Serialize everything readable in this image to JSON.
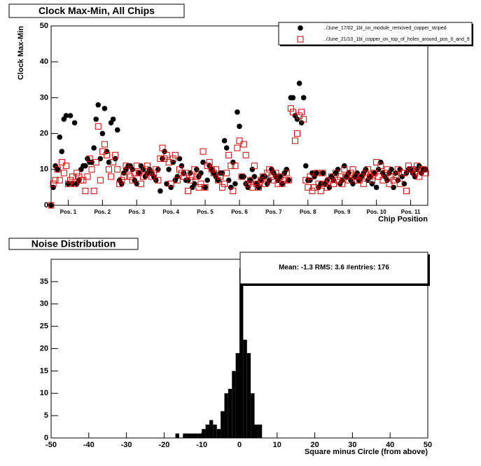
{
  "chart_data": [
    {
      "type": "scatter",
      "title": "Clock Max-Min, All Chips",
      "x_label": "Chip Position",
      "y_label": "Clock Max-Min",
      "xlim": [
        0,
        176
      ],
      "ylim": [
        0,
        50
      ],
      "yticks": [
        0,
        10,
        20,
        30,
        40,
        50
      ],
      "xticks": [
        {
          "value": 8,
          "label": "Pos. 1"
        },
        {
          "value": 24,
          "label": "Pos. 2"
        },
        {
          "value": 40,
          "label": "Pos. 3"
        },
        {
          "value": 56,
          "label": "Pos. 4"
        },
        {
          "value": 72,
          "label": "Pos. 5"
        },
        {
          "value": 88,
          "label": "Pos. 6"
        },
        {
          "value": 104,
          "label": "Pos. 7"
        },
        {
          "value": 120,
          "label": "Pos. 8"
        },
        {
          "value": 136,
          "label": "Pos. 9"
        },
        {
          "value": 152,
          "label": "Pos. 10"
        },
        {
          "value": 168,
          "label": "Pos. 11"
        }
      ],
      "legend": "upper right",
      "grid": false,
      "x": [
        0,
        1,
        2,
        3,
        4,
        5,
        6,
        7,
        8,
        9,
        10,
        11,
        12,
        13,
        14,
        15,
        16,
        17,
        18,
        19,
        20,
        21,
        22,
        23,
        24,
        25,
        26,
        27,
        28,
        29,
        30,
        31,
        32,
        33,
        34,
        35,
        36,
        37,
        38,
        39,
        40,
        41,
        42,
        43,
        44,
        45,
        46,
        47,
        48,
        49,
        50,
        51,
        52,
        53,
        54,
        55,
        56,
        57,
        58,
        59,
        60,
        61,
        62,
        63,
        64,
        65,
        66,
        67,
        68,
        69,
        70,
        71,
        72,
        73,
        74,
        75,
        76,
        77,
        78,
        79,
        80,
        81,
        82,
        83,
        84,
        85,
        86,
        87,
        88,
        89,
        90,
        91,
        92,
        93,
        94,
        95,
        96,
        97,
        98,
        99,
        100,
        101,
        102,
        103,
        104,
        105,
        106,
        107,
        108,
        109,
        110,
        111,
        112,
        113,
        114,
        115,
        116,
        117,
        118,
        119,
        120,
        121,
        122,
        123,
        124,
        125,
        126,
        127,
        128,
        129,
        130,
        131,
        132,
        133,
        134,
        135,
        136,
        137,
        138,
        139,
        140,
        141,
        142,
        143,
        144,
        145,
        146,
        147,
        148,
        149,
        150,
        151,
        152,
        153,
        154,
        155,
        156,
        157,
        158,
        159,
        160,
        161,
        162,
        163,
        164,
        165,
        166,
        167,
        168,
        169,
        170,
        171,
        172,
        173,
        174,
        175
      ],
      "series": [
        {
          "name": "../June_17/02_1bl_on_module_removed_copper_striped",
          "color": "#000000",
          "marker": "circle",
          "values": [
            0,
            5,
            11,
            10,
            19,
            15,
            24,
            25,
            6,
            25,
            6,
            23,
            6,
            7,
            10,
            11,
            11,
            13,
            12,
            12,
            16,
            24,
            28,
            13,
            20,
            27,
            15,
            12,
            23,
            24,
            13,
            21,
            7,
            6,
            9,
            10,
            11,
            11,
            10,
            7,
            6,
            9,
            11,
            10,
            8,
            9,
            10,
            9,
            8,
            7,
            10,
            4,
            13,
            15,
            6,
            10,
            5,
            12,
            7,
            8,
            13,
            11,
            9,
            7,
            7,
            9,
            5,
            6,
            10,
            8,
            9,
            12,
            5,
            7,
            11,
            10,
            9,
            8,
            7,
            9,
            9,
            18,
            16,
            7,
            5,
            12,
            6,
            26,
            22,
            8,
            8,
            6,
            5,
            7,
            10,
            8,
            6,
            5,
            7,
            8,
            8,
            6,
            7,
            10,
            9,
            8,
            7,
            8,
            6,
            9,
            10,
            7,
            30,
            30,
            25,
            24,
            34,
            23,
            30,
            11,
            7,
            7,
            9,
            8,
            9,
            5,
            6,
            9,
            6,
            7,
            5,
            8,
            7,
            9,
            10,
            6,
            7,
            11,
            8,
            9,
            7,
            6,
            8,
            9,
            7,
            8,
            9,
            10,
            7,
            8,
            6,
            9,
            5,
            10,
            12,
            9,
            8,
            7,
            9,
            10,
            5,
            9,
            7,
            10,
            8,
            6,
            9,
            10,
            10,
            9,
            8,
            10,
            11,
            9,
            10,
            10
          ]
        },
        {
          "name": "../June_21/10_1bl_copper_on_top_of_holes_around_pos_6_and_9",
          "color": "#d00000",
          "marker": "square",
          "values": [
            0,
            6,
            7,
            10,
            7,
            12,
            9,
            11,
            6,
            7,
            8,
            6,
            9,
            8,
            7,
            7,
            4,
            8,
            13,
            10,
            4,
            12,
            22,
            7,
            15,
            17,
            14,
            10,
            8,
            12,
            14,
            10,
            6,
            7,
            8,
            11,
            10,
            8,
            7,
            9,
            11,
            9,
            6,
            8,
            10,
            11,
            9,
            8,
            9,
            10,
            7,
            13,
            16,
            13,
            14,
            12,
            6,
            13,
            14,
            7,
            10,
            9,
            8,
            9,
            4,
            7,
            8,
            10,
            8,
            5,
            6,
            15,
            5,
            11,
            12,
            10,
            9,
            10,
            7,
            8,
            5,
            6,
            9,
            14,
            11,
            4,
            11,
            16,
            18,
            8,
            17,
            14,
            6,
            7,
            5,
            11,
            6,
            5,
            7,
            8,
            6,
            9,
            10,
            8,
            7,
            9,
            6,
            8,
            6,
            7,
            9,
            7,
            27,
            26,
            18,
            20,
            25,
            26,
            24,
            7,
            5,
            8,
            4,
            5,
            9,
            6,
            4,
            9,
            6,
            5,
            7,
            8,
            6,
            9,
            7,
            8,
            6,
            10,
            8,
            7,
            9,
            10,
            8,
            7,
            7,
            8,
            6,
            9,
            10,
            8,
            7,
            9,
            12,
            8,
            11,
            7,
            9,
            10,
            6,
            8,
            7,
            8,
            10,
            6,
            9,
            9,
            4,
            11,
            10,
            10,
            9,
            11,
            8,
            10,
            10,
            9
          ]
        }
      ]
    },
    {
      "type": "histogram",
      "title": "Noise Distribution",
      "x_label": "Square minus Circle (from above)",
      "stats": "Mean:  -1.3 RMS:   3.6 #entries: 176",
      "color": "#000000",
      "xlim": [
        -50,
        50
      ],
      "xticks": [
        -50,
        -40,
        -30,
        -20,
        -10,
        0,
        10,
        20,
        30,
        40,
        50
      ],
      "ylim": [
        0,
        40
      ],
      "yticks": [
        0,
        5,
        10,
        15,
        20,
        25,
        30,
        35
      ],
      "grid": false,
      "bins": [
        -17,
        -16,
        -15,
        -14,
        -13,
        -12,
        -11,
        -10,
        -9,
        -8,
        -7,
        -6,
        -5,
        -4,
        -3,
        -2,
        -1,
        0,
        1,
        2,
        3,
        4,
        5,
        6
      ],
      "values": [
        1,
        0,
        1,
        1,
        1,
        1,
        1,
        2,
        3,
        4,
        3,
        2,
        6,
        10,
        11,
        15,
        19,
        38,
        22,
        19,
        10,
        3,
        3
      ]
    }
  ]
}
